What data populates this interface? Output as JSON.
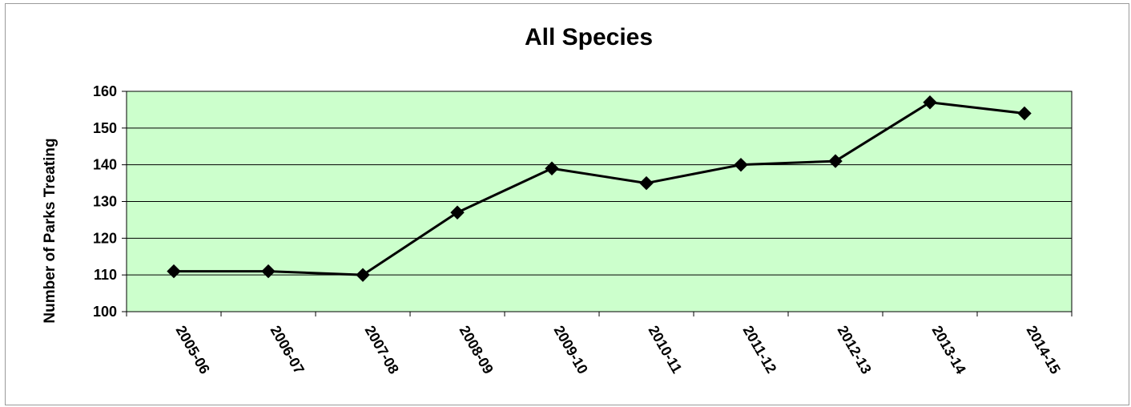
{
  "chart_data": {
    "type": "line",
    "title": "All Species",
    "xlabel": "",
    "ylabel": "Number of Parks Treating",
    "categories": [
      "2005-06",
      "2006-07",
      "2007-08",
      "2008-09",
      "2009-10",
      "2010-11",
      "2011-12",
      "2012-13",
      "2013-14",
      "2014-15"
    ],
    "series": [
      {
        "values": [
          111,
          111,
          110,
          127,
          139,
          135,
          140,
          141,
          157,
          154
        ]
      }
    ],
    "ylim": [
      100,
      160
    ],
    "yticks": [
      100,
      110,
      120,
      130,
      140,
      150,
      160
    ],
    "grid": true,
    "legend": "none",
    "colors": {
      "plot_background": "#ccffcc",
      "line": "#000000",
      "marker": "#000000",
      "gridline": "#000000"
    },
    "marker": "diamond"
  }
}
